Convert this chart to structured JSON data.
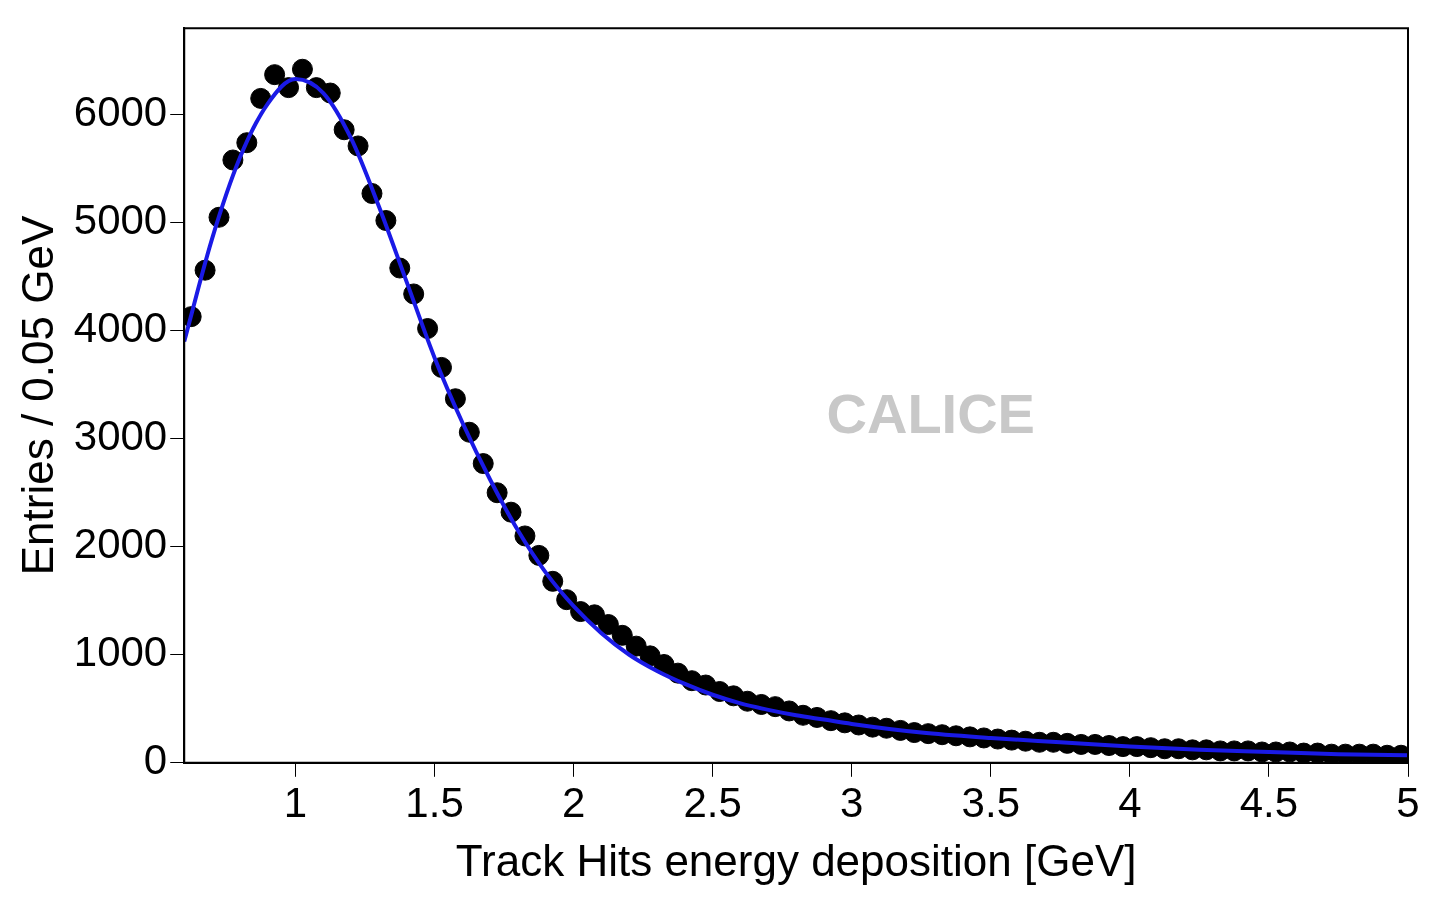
{
  "chart_data": {
    "type": "scatter",
    "xlabel": "Track Hits energy deposition [GeV]",
    "ylabel": "Entries / 0.05 GeV",
    "annotations": [
      "CALICE"
    ],
    "xlim": [
      0.6,
      5
    ],
    "xticks": [
      1,
      1.5,
      2,
      2.5,
      3,
      3.5,
      4,
      4.5,
      5
    ],
    "ylim": [
      0,
      6800
    ],
    "yticks": [
      0,
      1000,
      2000,
      3000,
      4000,
      5000,
      6000
    ],
    "grid": false,
    "legend": false,
    "series": [
      {
        "color": "#000000",
        "marker": "circle",
        "x": [
          0.625,
          0.675,
          0.725,
          0.775,
          0.825,
          0.875,
          0.925,
          0.975,
          1.025,
          1.075,
          1.125,
          1.175,
          1.225,
          1.275,
          1.325,
          1.375,
          1.425,
          1.475,
          1.525,
          1.575,
          1.625,
          1.675,
          1.725,
          1.775,
          1.825,
          1.875,
          1.925,
          1.975,
          2.025,
          2.075,
          2.125,
          2.175,
          2.225,
          2.275,
          2.325,
          2.375,
          2.425,
          2.475,
          2.525,
          2.575,
          2.625,
          2.675,
          2.725,
          2.775,
          2.825,
          2.875,
          2.925,
          2.975,
          3.025,
          3.075,
          3.125,
          3.175,
          3.225,
          3.275,
          3.325,
          3.375,
          3.425,
          3.475,
          3.525,
          3.575,
          3.625,
          3.675,
          3.725,
          3.775,
          3.825,
          3.875,
          3.925,
          3.975,
          4.025,
          4.075,
          4.125,
          4.175,
          4.225,
          4.275,
          4.325,
          4.375,
          4.425,
          4.475,
          4.525,
          4.575,
          4.625,
          4.675,
          4.725,
          4.775,
          4.825,
          4.875,
          4.925,
          4.975
        ],
        "values": [
          4130,
          4560,
          5050,
          5580,
          5740,
          6150,
          6370,
          6250,
          6420,
          6250,
          6200,
          5860,
          5710,
          5270,
          5020,
          4580,
          4340,
          4020,
          3660,
          3370,
          3060,
          2770,
          2500,
          2320,
          2100,
          1920,
          1680,
          1510,
          1400,
          1370,
          1280,
          1180,
          1080,
          990,
          910,
          830,
          760,
          720,
          660,
          620,
          570,
          540,
          520,
          480,
          440,
          420,
          390,
          370,
          350,
          330,
          320,
          300,
          280,
          270,
          260,
          250,
          240,
          230,
          220,
          210,
          200,
          190,
          190,
          180,
          170,
          170,
          160,
          150,
          150,
          140,
          130,
          130,
          120,
          120,
          110,
          110,
          110,
          100,
          100,
          100,
          90,
          90,
          80,
          80,
          80,
          80,
          70,
          70
        ]
      },
      {
        "type": "line",
        "color": "#1a1ae6",
        "marker": "none",
        "line_style": "solid",
        "x": [
          0.6,
          0.7,
          0.8,
          0.9,
          1.0,
          1.1,
          1.2,
          1.3,
          1.4,
          1.5,
          1.6,
          1.7,
          1.8,
          1.9,
          2.0,
          2.1,
          2.2,
          2.3,
          2.4,
          2.5,
          2.6,
          2.7,
          2.8,
          2.9,
          3.0,
          3.25,
          3.5,
          3.75,
          4.0,
          4.25,
          4.5,
          4.75,
          5.0
        ],
        "values": [
          3900,
          4850,
          5600,
          6100,
          6330,
          6200,
          5780,
          5150,
          4450,
          3750,
          3150,
          2620,
          2150,
          1760,
          1450,
          1200,
          1000,
          850,
          730,
          630,
          550,
          490,
          440,
          400,
          360,
          280,
          230,
          190,
          150,
          120,
          100,
          80,
          70
        ]
      }
    ]
  }
}
